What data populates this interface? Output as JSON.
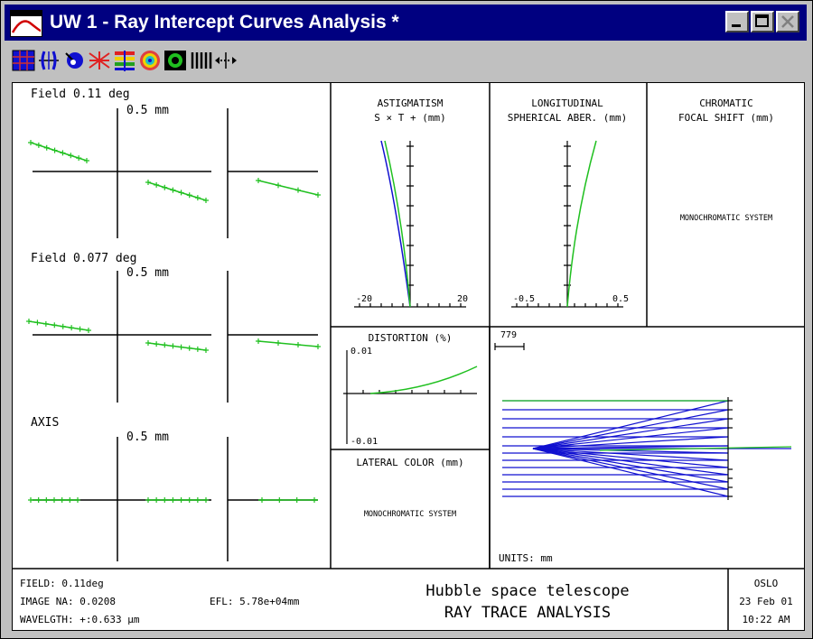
{
  "window": {
    "title": "UW 1 - Ray Intercept Curves Analysis *",
    "accent": "#000080",
    "controls": [
      "minimize-icon",
      "maximize-icon",
      "close-icon"
    ]
  },
  "toolbar": {
    "icons": [
      "grid-icon",
      "lens-icon",
      "spot-icon",
      "rays-icon",
      "bars-icon",
      "target-icon",
      "circle-icon",
      "lines-icon",
      "move-icon"
    ]
  },
  "ray_intercept": {
    "fields": [
      {
        "label": "Field 0.11 deg",
        "scale": "0.5 mm"
      },
      {
        "label": "Field 0.077 deg",
        "scale": "0.5 mm"
      },
      {
        "label": "AXIS",
        "scale": "0.5 mm"
      }
    ]
  },
  "astigmatism": {
    "title_line1": "ASTIGMATISM",
    "title_line2": "S × T + (mm)",
    "tick_min": "-20",
    "tick_max": "20"
  },
  "spherical": {
    "title_line1": "LONGITUDINAL",
    "title_line2": "SPHERICAL ABER. (mm)",
    "tick_min": "-0.5",
    "tick_max": "0.5"
  },
  "chromatic_focal": {
    "title_line1": "CHROMATIC",
    "title_line2": "FOCAL SHIFT (mm)",
    "message": "MONOCHROMATIC SYSTEM"
  },
  "distortion": {
    "title": "DISTORTION (%)",
    "tick_max": "0.01",
    "tick_min": "-0.01"
  },
  "lateral_color": {
    "title": "LATERAL COLOR (mm)",
    "message": "MONOCHROMATIC SYSTEM"
  },
  "lens_drawing": {
    "scale_label": "779",
    "units": "UNITS: mm"
  },
  "footer": {
    "field": "FIELD: 0.11deg",
    "image_na": "IMAGE NA: 0.0208",
    "wavelength": "WAVELGTH: +:0.633 µm",
    "efl": "EFL: 5.78e+04mm",
    "title_line1": "Hubble space telescope",
    "title_line2": "RAY TRACE ANALYSIS",
    "program": "OSLO",
    "date": "23 Feb 01",
    "time": "10:22 AM"
  },
  "colors": {
    "curve_green": "#20c020",
    "curve_blue": "#1010d0"
  }
}
